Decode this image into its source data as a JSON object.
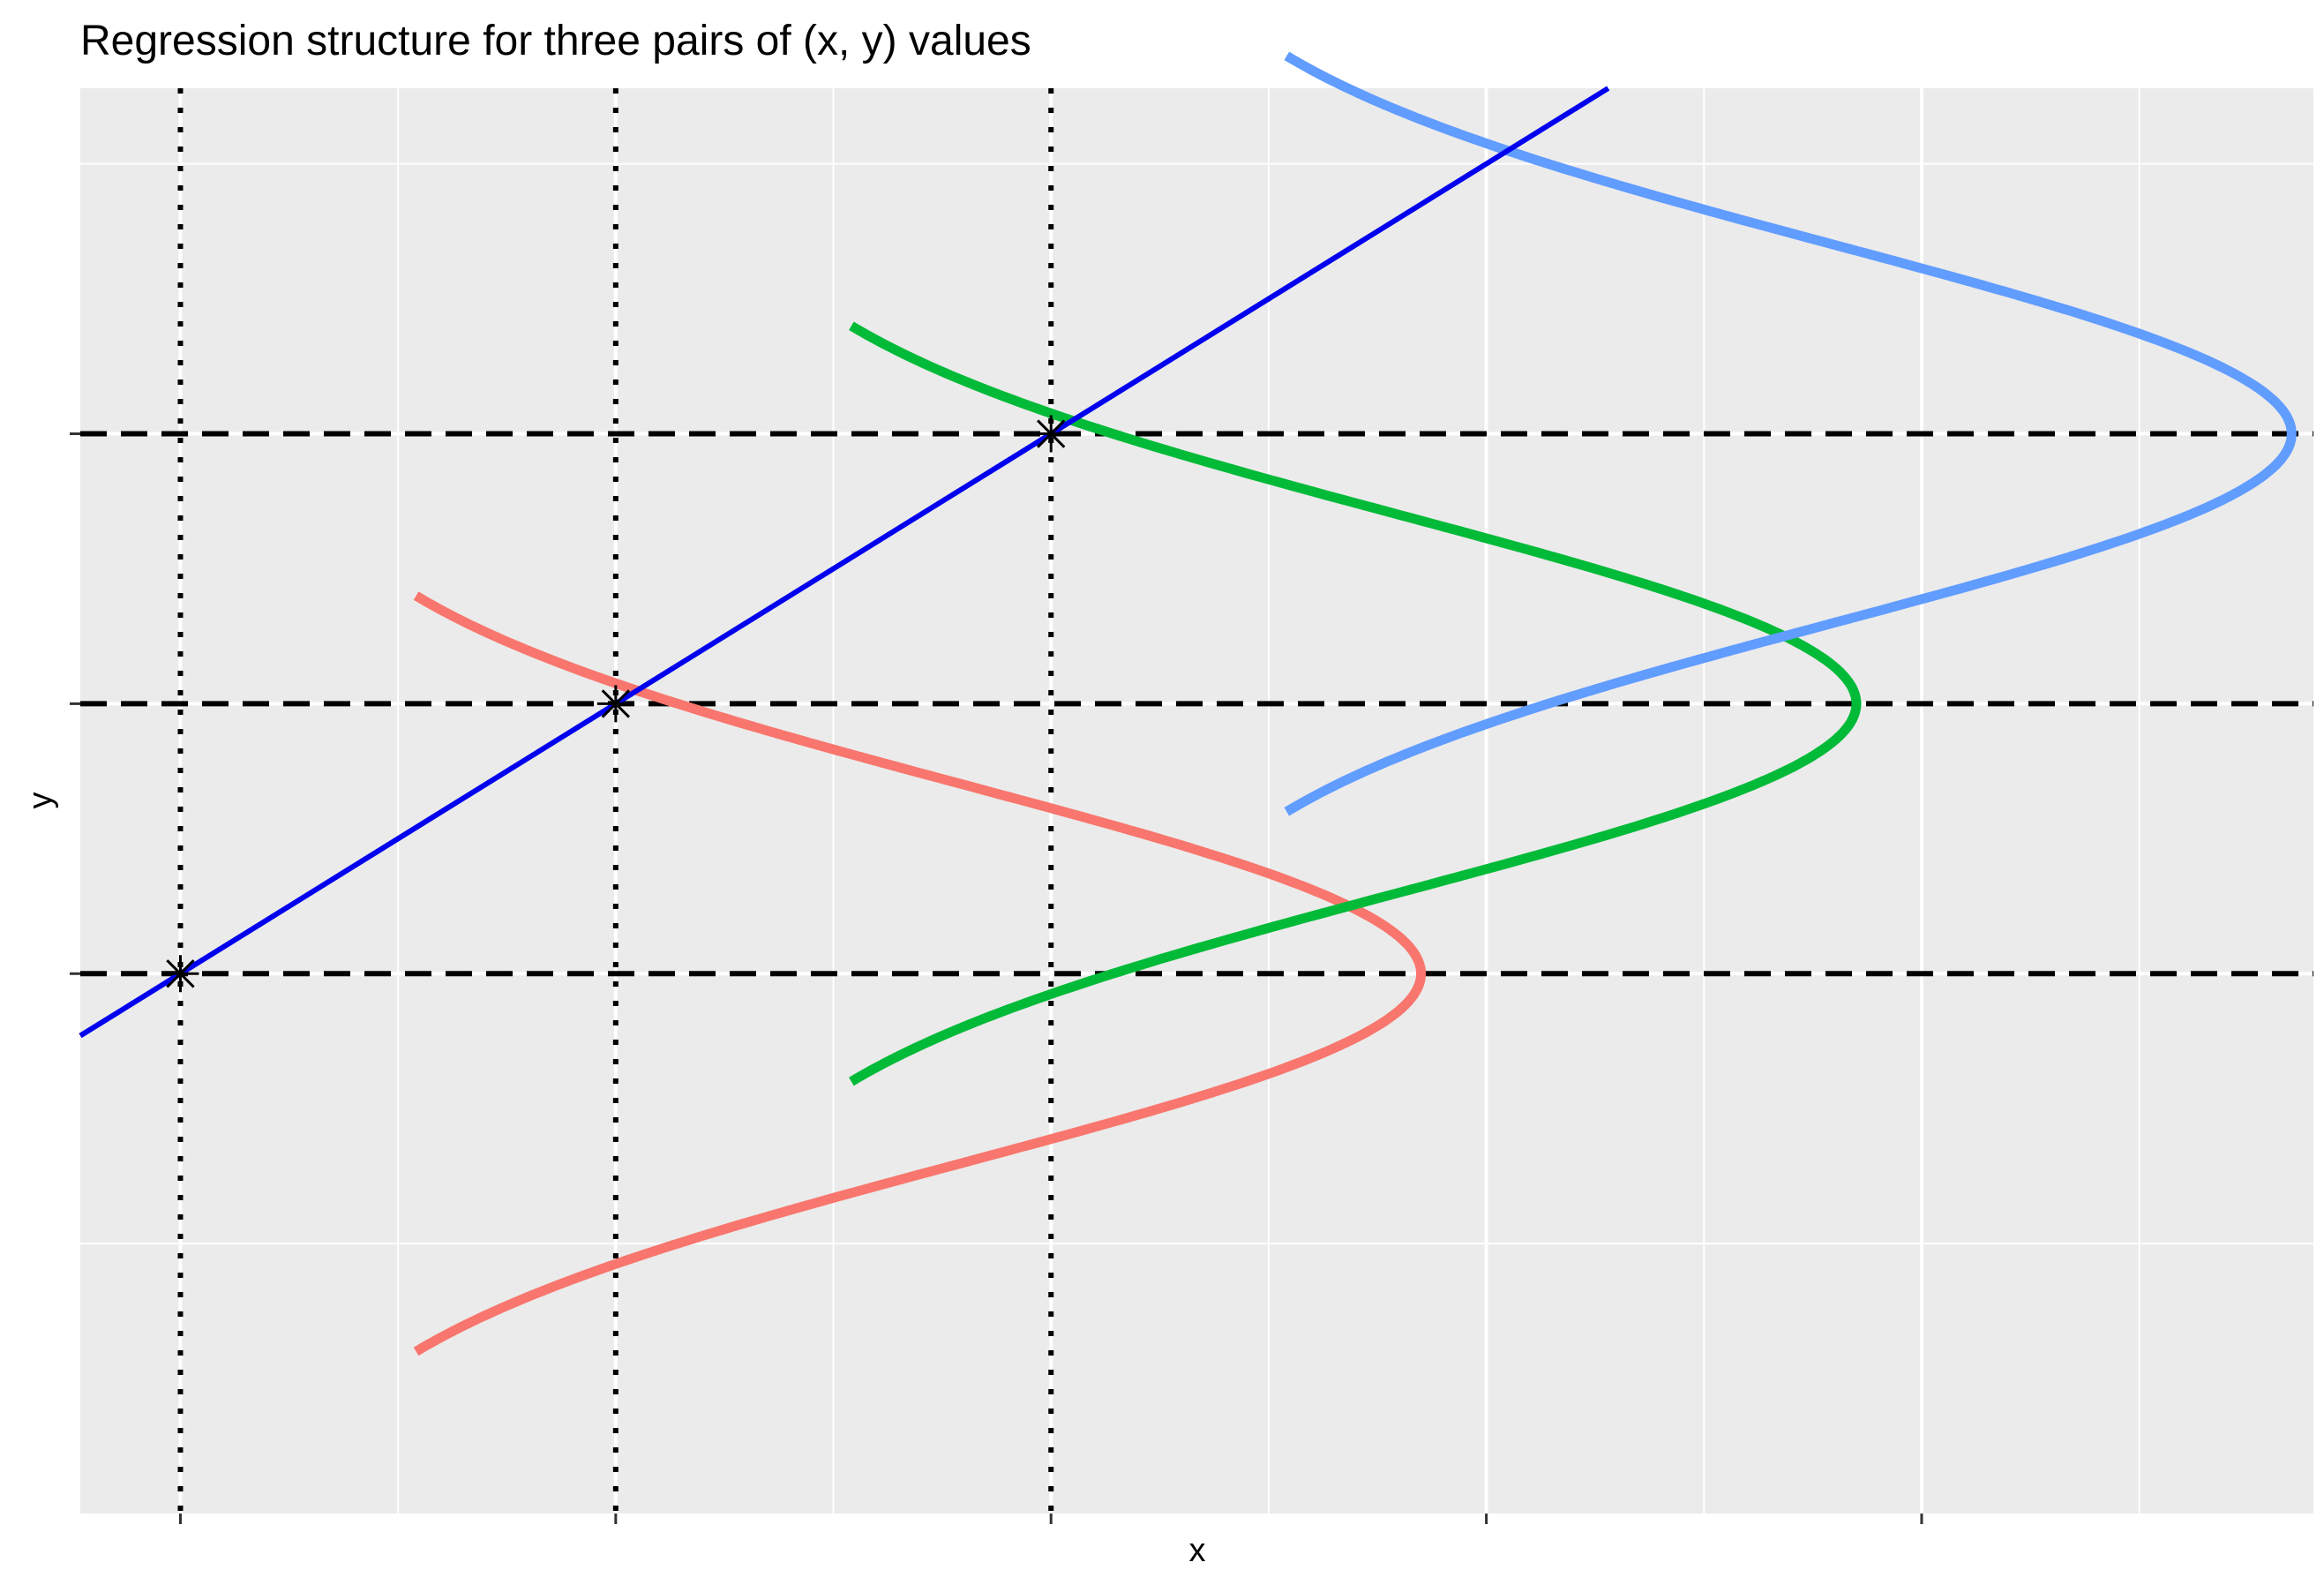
{
  "chart_data": {
    "type": "line",
    "title": "Regression structure for three pairs of (x, y) values",
    "xlabel": "x",
    "ylabel": "y",
    "xlim": [
      -0.23,
      4.9
    ],
    "ylim": [
      -4.0,
      1.28
    ],
    "x_major_ticks": [
      0,
      1,
      2,
      3,
      4
    ],
    "x_minor_grid": [
      0.5,
      1.5,
      2.5,
      3.5,
      4.5
    ],
    "y_major_ticks": [
      -2,
      -1,
      0
    ],
    "y_minor_grid": [
      -3,
      1
    ],
    "grid": true,
    "background": "#ebebeb",
    "observations": {
      "x": [
        0,
        1,
        2
      ],
      "y": [
        -2,
        -1,
        0
      ],
      "marker": "asterisk"
    },
    "regression_line": {
      "intercept": -2,
      "slope": 1,
      "color": "#0000ee"
    },
    "vertical_reference_lines": {
      "x": [
        0,
        1,
        2
      ],
      "style": "dotted"
    },
    "horizontal_reference_lines": {
      "y": [
        -2,
        -1,
        0
      ],
      "style": "dashed"
    },
    "density_curves": {
      "sigma": 0.7,
      "half_width_sd": 2,
      "peak_offset": 2.67,
      "series": [
        {
          "center_x": 0.18,
          "mean_y": -2,
          "color": "#f8766d"
        },
        {
          "center_x": 1.18,
          "mean_y": -1,
          "color": "#00ba38"
        },
        {
          "center_x": 2.18,
          "mean_y": 0,
          "color": "#619cff"
        }
      ]
    }
  }
}
